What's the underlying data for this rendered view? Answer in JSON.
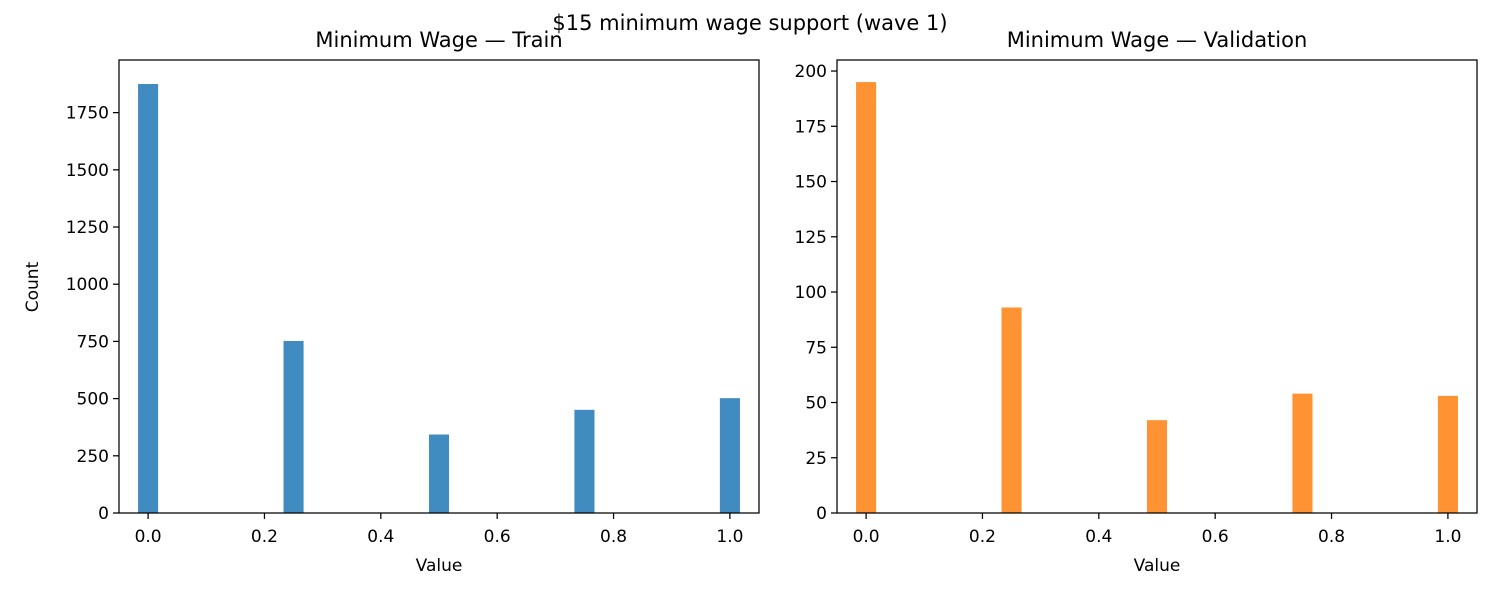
{
  "figure": {
    "suptitle": "$15 minimum wage support (wave 1)"
  },
  "chart_data": [
    {
      "type": "bar",
      "title": "Minimum Wage — Train",
      "xlabel": "Value",
      "ylabel": "Count",
      "x": [
        0.0,
        0.25,
        0.5,
        0.75,
        1.0
      ],
      "values": [
        1875,
        752,
        343,
        451,
        502
      ],
      "xlim": [
        -0.05,
        1.05
      ],
      "ylim": [
        0,
        1980
      ],
      "xticks": [
        "0.0",
        "0.2",
        "0.4",
        "0.6",
        "0.8",
        "1.0"
      ],
      "yticks": [
        "0",
        "250",
        "500",
        "750",
        "1000",
        "1250",
        "1500",
        "1750"
      ],
      "color": "#1f77b4",
      "grid": false,
      "legend": "none"
    },
    {
      "type": "bar",
      "title": "Minimum Wage — Validation",
      "xlabel": "Value",
      "ylabel": "",
      "x": [
        0.0,
        0.25,
        0.5,
        0.75,
        1.0
      ],
      "values": [
        195,
        93,
        42,
        54,
        53
      ],
      "xlim": [
        -0.05,
        1.05
      ],
      "ylim": [
        0,
        205
      ],
      "xticks": [
        "0.0",
        "0.2",
        "0.4",
        "0.6",
        "0.8",
        "1.0"
      ],
      "yticks": [
        "0",
        "25",
        "50",
        "75",
        "100",
        "125",
        "150",
        "175",
        "200"
      ],
      "color": "#ff7f0e",
      "grid": false,
      "legend": "none"
    }
  ]
}
